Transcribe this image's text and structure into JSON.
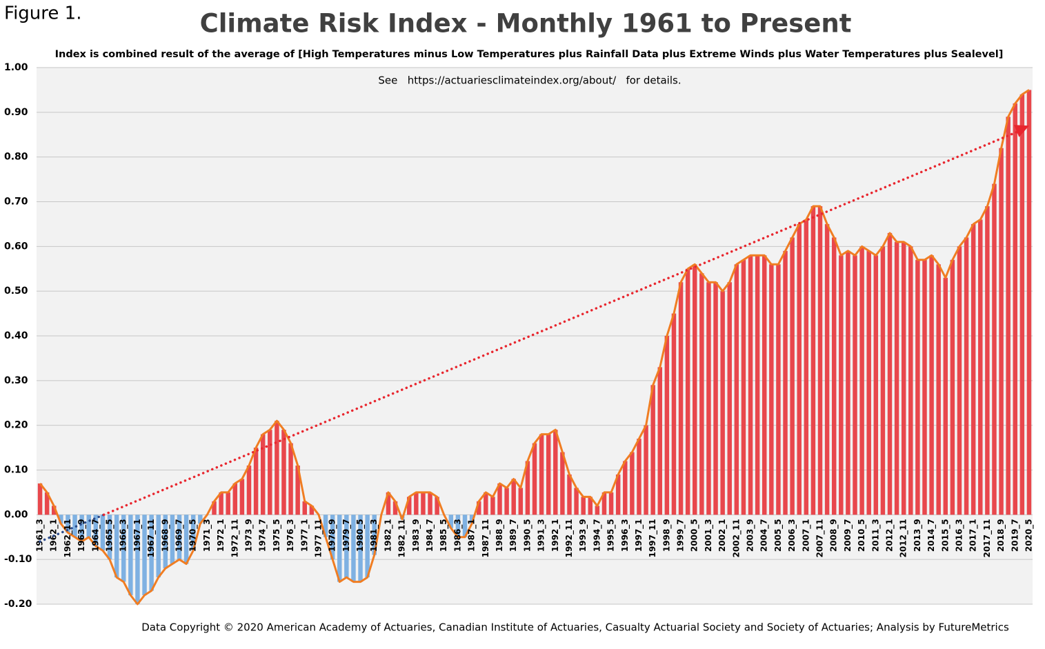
{
  "chart_data": {
    "type": "bar",
    "figure_label": "Figure 1.",
    "title": "Climate Risk Index - Monthly 1961 to Present",
    "subtitle": "Index is combined result of the average of [High Temperatures minus Low Temperatures plus Rainfall Data plus Extreme Winds plus Water Temperatures plus Sealevel]",
    "note": "See   https://actuariesclimateindex.org/about/   for details.",
    "footer": "Data Copyright © 2020 American Academy of Actuaries, Canadian Institute of Actuaries, Casualty Actuarial Society and Society of Actuaries; Analysis by FutureMetrics",
    "categories": [
      "1961_3",
      null,
      "1962_1",
      null,
      "1962_11",
      null,
      "1963_9",
      null,
      "1964_7",
      null,
      "1965_5",
      null,
      "1966_3",
      null,
      "1967_1",
      null,
      "1967_11",
      null,
      "1968_9",
      null,
      "1969_7",
      null,
      "1970_5",
      null,
      "1971_3",
      null,
      "1972_1",
      null,
      "1972_11",
      null,
      "1973_9",
      null,
      "1974_7",
      null,
      "1975_5",
      null,
      "1976_3",
      null,
      "1977_1",
      null,
      "1977_11",
      null,
      "1978_9",
      null,
      "1979_7",
      null,
      "1980_5",
      null,
      "1981_3",
      null,
      "1982_1",
      null,
      "1982_11",
      null,
      "1983_9",
      null,
      "1984_7",
      null,
      "1985_5",
      null,
      "1986_3",
      null,
      "1987_1",
      null,
      "1987_11",
      null,
      "1988_9",
      null,
      "1989_7",
      null,
      "1990_5",
      null,
      "1991_3",
      null,
      "1992_1",
      null,
      "1992_11",
      null,
      "1993_9",
      null,
      "1994_7",
      null,
      "1995_5",
      null,
      "1996_3",
      null,
      "1997_1",
      null,
      "1997_11",
      null,
      "1998_9",
      null,
      "1999_7",
      null,
      "2000_5",
      null,
      "2001_3",
      null,
      "2002_1",
      null,
      "2002_11",
      null,
      "2003_9",
      null,
      "2004_7",
      null,
      "2005_5",
      null,
      "2006_3",
      null,
      "2007_1",
      null,
      "2007_11",
      null,
      "2008_9",
      null,
      "2009_7",
      null,
      "2010_5",
      null,
      "2011_3",
      null,
      "2012_1",
      null,
      "2012_11",
      null,
      "2013_9",
      null,
      "2014_7",
      null,
      "2015_5",
      null,
      "2016_3",
      null,
      "2017_1",
      null,
      "2017_11",
      null,
      "2018_9",
      null,
      "2019_7",
      null,
      "2020_5"
    ],
    "values": [
      0.07,
      0.05,
      0.02,
      -0.02,
      -0.04,
      -0.05,
      -0.06,
      -0.05,
      -0.07,
      -0.08,
      -0.1,
      -0.14,
      -0.15,
      -0.18,
      -0.2,
      -0.18,
      -0.17,
      -0.14,
      -0.12,
      -0.11,
      -0.1,
      -0.11,
      -0.08,
      -0.02,
      0.0,
      0.03,
      0.05,
      0.05,
      0.07,
      0.08,
      0.11,
      0.15,
      0.18,
      0.19,
      0.21,
      0.19,
      0.16,
      0.11,
      0.03,
      0.02,
      0.0,
      -0.05,
      -0.1,
      -0.15,
      -0.14,
      -0.15,
      -0.15,
      -0.14,
      -0.09,
      0.0,
      0.05,
      0.03,
      -0.01,
      0.04,
      0.05,
      0.05,
      0.05,
      0.04,
      0.0,
      -0.03,
      -0.05,
      -0.05,
      -0.02,
      0.03,
      0.05,
      0.04,
      0.07,
      0.06,
      0.08,
      0.06,
      0.12,
      0.16,
      0.18,
      0.18,
      0.19,
      0.14,
      0.09,
      0.06,
      0.04,
      0.04,
      0.02,
      0.05,
      0.05,
      0.09,
      0.12,
      0.14,
      0.17,
      0.2,
      0.29,
      0.33,
      0.4,
      0.45,
      0.52,
      0.55,
      0.56,
      0.54,
      0.52,
      0.52,
      0.5,
      0.52,
      0.56,
      0.57,
      0.58,
      0.58,
      0.58,
      0.56,
      0.56,
      0.59,
      0.62,
      0.65,
      0.66,
      0.69,
      0.69,
      0.65,
      0.62,
      0.58,
      0.59,
      0.58,
      0.6,
      0.59,
      0.58,
      0.6,
      0.63,
      0.61,
      0.61,
      0.6,
      0.57,
      0.57,
      0.58,
      0.56,
      0.53,
      0.57,
      0.6,
      0.62,
      0.65,
      0.66,
      0.69,
      0.74,
      0.82,
      0.89,
      0.92,
      0.94,
      0.95
    ],
    "positive_color": "#e8474c",
    "negative_color": "#7fb1e2",
    "line_color": "#f07d22",
    "trend": [
      -0.06,
      0.87
    ],
    "trend_colors": [
      "#2a4a8a",
      "#e8262e"
    ],
    "ylim": [
      -0.2,
      1.0
    ],
    "yticks": [
      {
        "value": 1.0,
        "label": "1.00"
      },
      {
        "value": 0.9,
        "label": "0.90"
      },
      {
        "value": 0.8,
        "label": "0.80"
      },
      {
        "value": 0.7,
        "label": "0.70"
      },
      {
        "value": 0.6,
        "label": "0.60"
      },
      {
        "value": 0.5,
        "label": "0.50"
      },
      {
        "value": 0.4,
        "label": "0.40"
      },
      {
        "value": 0.3,
        "label": "0.30"
      },
      {
        "value": 0.2,
        "label": "0.20"
      },
      {
        "value": 0.1,
        "label": "0.10"
      },
      {
        "value": 0,
        "label": "0.00"
      },
      {
        "value": -0.1,
        "label": "-0.10"
      },
      {
        "value": -0.2,
        "label": "-0.20"
      }
    ],
    "grid": true
  }
}
